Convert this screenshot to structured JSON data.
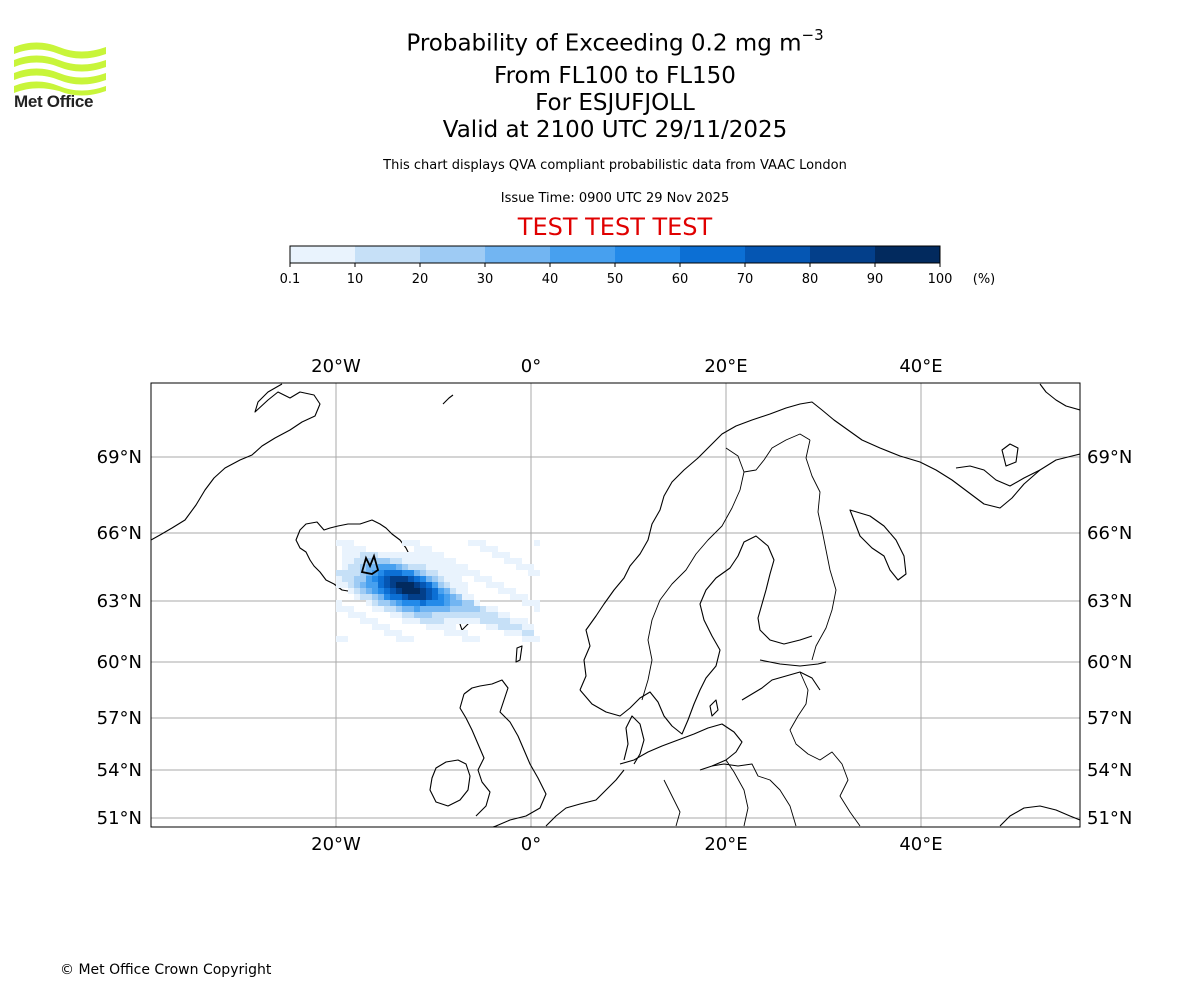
{
  "header": {
    "title_main": "Probability of Exceeding 0.2 mg m",
    "title_exp": "−3",
    "line2": "From FL100 to FL150",
    "line3": "For ESJUFJOLL",
    "line4": "Valid at 2100 UTC 29/11/2025",
    "info": "This chart displays QVA compliant probabilistic data from VAAC London",
    "issue": "Issue Time: 0900 UTC 29 Nov 2025",
    "banner": "TEST TEST TEST"
  },
  "logo": {
    "text": "Met Office",
    "icon": "met-office-waves-icon",
    "color": "#c8f53a"
  },
  "colorbar": {
    "ticks": [
      "0.1",
      "10",
      "20",
      "30",
      "40",
      "50",
      "60",
      "70",
      "80",
      "90",
      "100"
    ],
    "unit": "(%)",
    "colors": [
      "#e9f3fd",
      "#c6e0f7",
      "#9ecbf4",
      "#72b5f2",
      "#47a0ef",
      "#238ae9",
      "#0c6fd4",
      "#0556b3",
      "#033f8a",
      "#022a5e"
    ]
  },
  "map": {
    "lon_ticks": [
      "20°W",
      "0°",
      "20°E",
      "40°E"
    ],
    "lat_ticks": [
      "69°N",
      "66°N",
      "63°N",
      "60°N",
      "57°N",
      "54°N",
      "51°N"
    ],
    "gridline_color": "#aaaaaa"
  },
  "footer": {
    "copyright": "© Met Office Crown Copyright"
  }
}
